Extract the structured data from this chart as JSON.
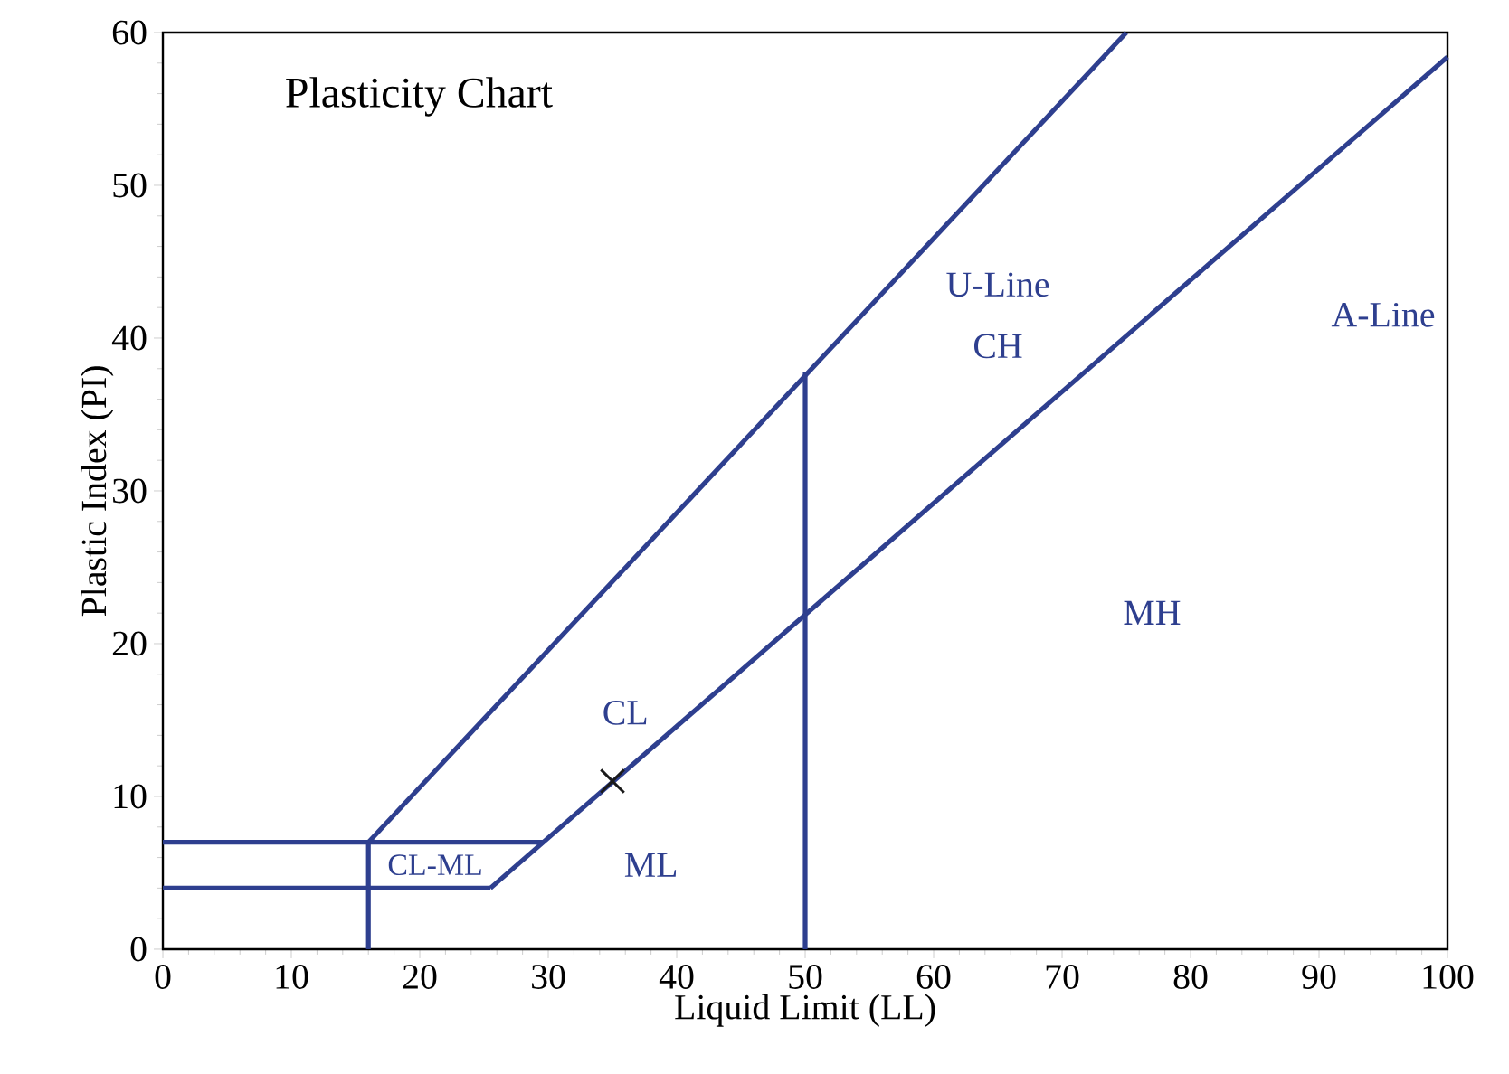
{
  "chart_data": {
    "type": "line",
    "title": "Plasticity Chart",
    "xlabel": "Liquid Limit (LL)",
    "ylabel": "Plastic Index (PI)",
    "xlim": [
      0,
      100
    ],
    "ylim": [
      0,
      60
    ],
    "xticks": [
      0,
      10,
      20,
      30,
      40,
      50,
      60,
      70,
      80,
      90,
      100
    ],
    "yticks": [
      0,
      10,
      20,
      30,
      40,
      50,
      60
    ],
    "grid": false,
    "marker": "none",
    "line_style": "solid",
    "series": [
      {
        "color": "#2e3f8f",
        "x": [
          16,
          75
        ],
        "values": [
          7,
          60
        ]
      },
      {
        "color": "#2e3f8f",
        "x": [
          25.5,
          100
        ],
        "values": [
          4,
          58.4
        ]
      },
      {
        "color": "#2e3f8f",
        "x": [
          0,
          29.6
        ],
        "values": [
          7,
          7
        ]
      },
      {
        "color": "#2e3f8f",
        "x": [
          0,
          25.5
        ],
        "values": [
          4,
          4
        ]
      },
      {
        "color": "#2e3f8f",
        "x": [
          50,
          50
        ],
        "values": [
          0,
          37.8
        ]
      },
      {
        "color": "#2e3f8f",
        "x": [
          16,
          16
        ],
        "values": [
          0,
          7
        ]
      },
      {
        "type": "scatter",
        "marker": "cross",
        "color": "#1a1a1a",
        "x": [
          35
        ],
        "values": [
          11
        ]
      }
    ],
    "annotations": [
      "U-Line",
      "CH",
      "A-Line",
      "MH",
      "CL",
      "ML",
      "CL-ML"
    ]
  }
}
